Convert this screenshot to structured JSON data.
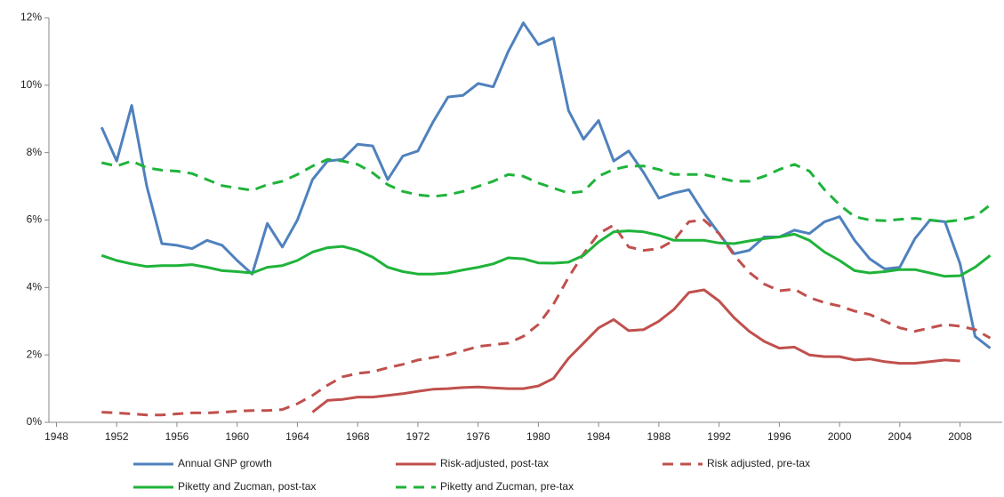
{
  "chart_data": {
    "type": "line",
    "x": [
      1951,
      1952,
      1953,
      1954,
      1955,
      1956,
      1957,
      1958,
      1959,
      1960,
      1961,
      1962,
      1963,
      1964,
      1965,
      1966,
      1967,
      1968,
      1969,
      1970,
      1971,
      1972,
      1973,
      1974,
      1975,
      1976,
      1977,
      1978,
      1979,
      1980,
      1981,
      1982,
      1983,
      1984,
      1985,
      1986,
      1987,
      1988,
      1989,
      1990,
      1991,
      1992,
      1993,
      1994,
      1995,
      1996,
      1997,
      1998,
      1999,
      2000,
      2001,
      2002,
      2003,
      2004,
      2005,
      2006,
      2007,
      2008,
      2009,
      2010
    ],
    "series": [
      {
        "name": "Annual GNP growth",
        "color": "#4f81bd",
        "dashed": false,
        "values": [
          8.75,
          7.75,
          9.4,
          7.0,
          5.3,
          5.25,
          5.15,
          5.4,
          5.25,
          4.8,
          4.4,
          5.9,
          5.2,
          6.0,
          7.2,
          7.75,
          7.8,
          8.25,
          8.2,
          7.2,
          7.9,
          8.05,
          8.9,
          9.65,
          9.7,
          10.05,
          9.95,
          11.0,
          11.85,
          11.2,
          11.4,
          9.25,
          8.4,
          8.95,
          7.75,
          8.05,
          7.4,
          6.65,
          6.8,
          6.9,
          6.2,
          5.6,
          5.0,
          5.1,
          5.5,
          5.5,
          5.7,
          5.6,
          5.95,
          6.1,
          5.4,
          4.85,
          4.55,
          4.6,
          5.45,
          6.0,
          5.95,
          4.7,
          2.55,
          2.2
        ]
      },
      {
        "name": "Risk-adjusted, post-tax",
        "color": "#c0504d",
        "dashed": false,
        "values": [
          null,
          null,
          null,
          null,
          null,
          null,
          null,
          null,
          null,
          null,
          null,
          null,
          null,
          null,
          0.3,
          0.65,
          0.68,
          0.75,
          0.75,
          0.8,
          0.85,
          0.92,
          0.98,
          1.0,
          1.03,
          1.05,
          1.02,
          1.0,
          1.0,
          1.08,
          1.3,
          1.9,
          2.35,
          2.8,
          3.05,
          2.72,
          2.75,
          3.0,
          3.35,
          3.85,
          3.93,
          3.6,
          3.1,
          2.7,
          2.4,
          2.2,
          2.23,
          2.0,
          1.95,
          1.95,
          1.85,
          1.88,
          1.8,
          1.75,
          1.75,
          1.8,
          1.85,
          1.82,
          null,
          null
        ]
      },
      {
        "name": "Risk adjusted, pre-tax",
        "color": "#c0504d",
        "dashed": true,
        "values": [
          0.3,
          0.28,
          0.25,
          0.22,
          0.22,
          0.25,
          0.28,
          0.28,
          0.3,
          0.33,
          0.35,
          0.35,
          0.38,
          0.55,
          0.8,
          1.1,
          1.35,
          1.45,
          1.5,
          1.62,
          1.72,
          1.85,
          1.92,
          2.0,
          2.12,
          2.25,
          2.3,
          2.35,
          2.55,
          2.9,
          3.5,
          4.3,
          5.0,
          5.6,
          5.85,
          5.2,
          5.1,
          5.15,
          5.4,
          5.95,
          6.0,
          5.6,
          4.95,
          4.45,
          4.1,
          3.9,
          3.95,
          3.7,
          3.55,
          3.45,
          3.3,
          3.2,
          3.0,
          2.8,
          2.7,
          2.8,
          2.9,
          2.85,
          2.75,
          2.5
        ]
      },
      {
        "name": "Piketty and Zucman, post-tax",
        "color": "#1fb33a",
        "dashed": false,
        "values": [
          4.95,
          4.8,
          4.7,
          4.62,
          4.65,
          4.65,
          4.68,
          4.6,
          4.5,
          4.47,
          4.43,
          4.6,
          4.65,
          4.8,
          5.05,
          5.18,
          5.22,
          5.1,
          4.9,
          4.6,
          4.47,
          4.4,
          4.4,
          4.43,
          4.52,
          4.6,
          4.7,
          4.88,
          4.85,
          4.73,
          4.72,
          4.75,
          4.95,
          5.35,
          5.65,
          5.68,
          5.65,
          5.55,
          5.4,
          5.4,
          5.4,
          5.32,
          5.3,
          5.38,
          5.45,
          5.5,
          5.58,
          5.4,
          5.05,
          4.8,
          4.5,
          4.43,
          4.47,
          4.53,
          4.53,
          4.43,
          4.33,
          4.35,
          4.6,
          4.95
        ]
      },
      {
        "name": "Piketty and Zucman, pre-tax",
        "color": "#1fb33a",
        "dashed": true,
        "values": [
          7.7,
          7.6,
          7.75,
          7.55,
          7.48,
          7.45,
          7.38,
          7.2,
          7.02,
          6.95,
          6.88,
          7.05,
          7.15,
          7.35,
          7.6,
          7.8,
          7.75,
          7.65,
          7.4,
          7.05,
          6.85,
          6.75,
          6.7,
          6.75,
          6.85,
          7.0,
          7.15,
          7.35,
          7.3,
          7.1,
          6.95,
          6.8,
          6.85,
          7.3,
          7.5,
          7.6,
          7.6,
          7.5,
          7.35,
          7.35,
          7.35,
          7.25,
          7.15,
          7.15,
          7.3,
          7.5,
          7.65,
          7.45,
          6.9,
          6.45,
          6.1,
          6.0,
          5.98,
          6.02,
          6.05,
          6.0,
          5.95,
          6.0,
          6.1,
          6.45
        ]
      }
    ],
    "xlim": [
      1947.5,
      2010.8
    ],
    "xticks": [
      1948,
      1952,
      1956,
      1960,
      1964,
      1968,
      1972,
      1976,
      1980,
      1984,
      1988,
      1992,
      1996,
      2000,
      2004,
      2008
    ],
    "ylim": [
      0,
      12
    ],
    "yticks": [
      {
        "value": 0,
        "label": "0%"
      },
      {
        "value": 2,
        "label": "2%"
      },
      {
        "value": 4,
        "label": "4%"
      },
      {
        "value": 6,
        "label": "6%"
      },
      {
        "value": 8,
        "label": "8%"
      },
      {
        "value": 10,
        "label": "10%"
      },
      {
        "value": 12,
        "label": "12%"
      }
    ],
    "grid": false
  }
}
